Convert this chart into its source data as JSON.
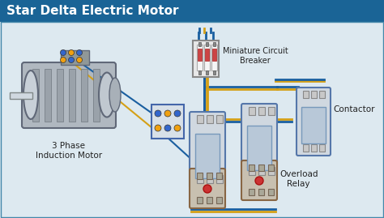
{
  "title": "Star Delta Electric Motor",
  "title_bg": "#1a6496",
  "title_color": "#ffffff",
  "bg_color": "#e8f4f8",
  "content_bg": "#dde9f0",
  "labels": {
    "motor": "3 Phase\nInduction Motor",
    "mcb": "Miniature Circuit\nBreaker",
    "contactor": "Contactor",
    "overload": "Overload\nRelay"
  },
  "wire_colors": [
    "#1a6fa3",
    "#d4a017",
    "#1a6fa3",
    "#d4a017"
  ],
  "title_fontsize": 11,
  "label_fontsize": 8,
  "fig_width": 4.74,
  "fig_height": 2.69
}
